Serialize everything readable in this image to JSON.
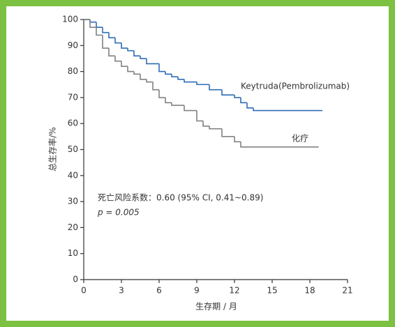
{
  "chart_data": {
    "type": "line",
    "step": true,
    "xlabel": "生存期 / 月",
    "ylabel": "总生存率/%",
    "xlim": [
      0,
      21
    ],
    "ylim": [
      0,
      100
    ],
    "xticks": [
      0,
      3,
      6,
      9,
      12,
      15,
      18,
      21
    ],
    "yticks": [
      0,
      10,
      20,
      30,
      40,
      50,
      60,
      70,
      80,
      90,
      100
    ],
    "grid": false,
    "annotations": [
      "死亡风险系数：0.60 (95% CI, 0.41~0.89)",
      "p = 0.005"
    ],
    "series": [
      {
        "name": "Keytruda(Pembrolizumab)",
        "color": "#2f6db5",
        "x": [
          0,
          0.5,
          1,
          1.5,
          2,
          2.5,
          3,
          3.5,
          4,
          4.5,
          5,
          6,
          6.5,
          7,
          7.5,
          8,
          9,
          10,
          11,
          12,
          12.5,
          13,
          13.5,
          19
        ],
        "values": [
          100,
          99,
          97,
          95,
          93,
          91,
          89,
          88,
          86,
          85,
          83,
          80,
          79,
          78,
          77,
          76,
          75,
          73,
          71,
          70,
          68,
          66,
          65,
          65
        ]
      },
      {
        "name": "化疗",
        "color": "#808285",
        "x": [
          0,
          0.5,
          1,
          1.5,
          2,
          2.5,
          3,
          3.5,
          4,
          4.5,
          5,
          5.5,
          6,
          6.5,
          7,
          8,
          9,
          9.5,
          10,
          11,
          12,
          12.5,
          18.7
        ],
        "values": [
          100,
          97,
          94,
          89,
          86,
          84,
          82,
          80,
          79,
          77,
          76,
          73,
          70,
          68,
          67,
          65,
          61,
          59,
          58,
          55,
          53,
          51,
          51
        ]
      }
    ]
  }
}
